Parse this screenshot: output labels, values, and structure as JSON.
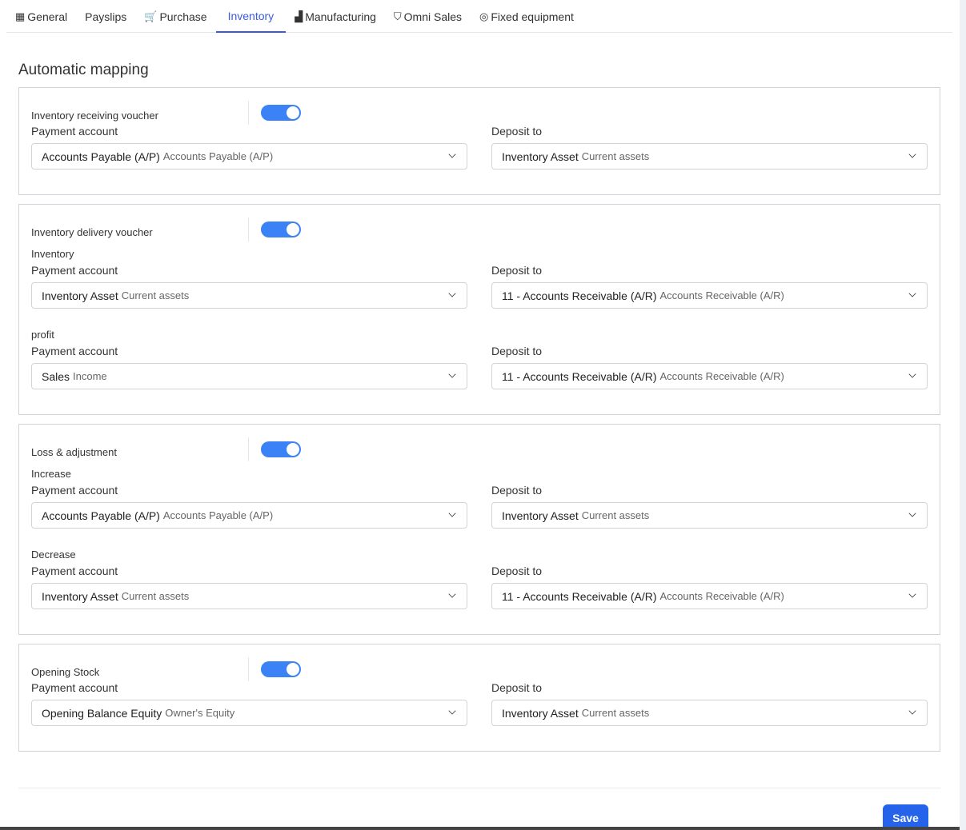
{
  "tabs": [
    {
      "label": "General",
      "icon": "table-icon",
      "glyph": "▦"
    },
    {
      "label": "Payslips",
      "icon": "",
      "glyph": ""
    },
    {
      "label": "Purchase",
      "icon": "cart-icon",
      "glyph": "🛒"
    },
    {
      "label": "Inventory",
      "icon": "",
      "glyph": "",
      "active": true
    },
    {
      "label": "Manufacturing",
      "icon": "industry-icon",
      "glyph": "▟"
    },
    {
      "label": "Omni Sales",
      "icon": "basket-icon",
      "glyph": "⛉"
    },
    {
      "label": "Fixed equipment",
      "icon": "bullseye-icon",
      "glyph": "◎"
    }
  ],
  "page_title": "Automatic mapping",
  "accent": "#3b82f6",
  "sections": [
    {
      "title": "Inventory receiving voucher",
      "enabled": true,
      "groups": [
        {
          "subtitle": "",
          "left": {
            "label": "Payment account",
            "main": "Accounts Payable (A/P)",
            "secondary": "Accounts Payable (A/P)"
          },
          "right": {
            "label": "Deposit to",
            "main": "Inventory Asset",
            "secondary": "Current assets"
          }
        }
      ]
    },
    {
      "title": "Inventory delivery voucher",
      "enabled": true,
      "groups": [
        {
          "subtitle": "Inventory",
          "left": {
            "label": "Payment account",
            "main": "Inventory Asset",
            "secondary": "Current assets"
          },
          "right": {
            "label": "Deposit to",
            "main": "11 - Accounts Receivable (A/R)",
            "secondary": "Accounts Receivable (A/R)"
          }
        },
        {
          "subtitle": "profit",
          "left": {
            "label": "Payment account",
            "main": "Sales",
            "secondary": "Income"
          },
          "right": {
            "label": "Deposit to",
            "main": "11 - Accounts Receivable (A/R)",
            "secondary": "Accounts Receivable (A/R)"
          }
        }
      ]
    },
    {
      "title": "Loss & adjustment",
      "enabled": true,
      "groups": [
        {
          "subtitle": "Increase",
          "left": {
            "label": "Payment account",
            "main": "Accounts Payable (A/P)",
            "secondary": "Accounts Payable (A/P)"
          },
          "right": {
            "label": "Deposit to",
            "main": "Inventory Asset",
            "secondary": "Current assets"
          }
        },
        {
          "subtitle": "Decrease",
          "left": {
            "label": "Payment account",
            "main": "Inventory Asset",
            "secondary": "Current assets"
          },
          "right": {
            "label": "Deposit to",
            "main": "11 - Accounts Receivable (A/R)",
            "secondary": "Accounts Receivable (A/R)"
          }
        }
      ]
    },
    {
      "title": "Opening Stock",
      "enabled": true,
      "groups": [
        {
          "subtitle": "",
          "left": {
            "label": "Payment account",
            "main": "Opening Balance Equity",
            "secondary": "Owner's Equity"
          },
          "right": {
            "label": "Deposit to",
            "main": "Inventory Asset",
            "secondary": "Current assets"
          }
        }
      ]
    }
  ],
  "save_label": "Save"
}
